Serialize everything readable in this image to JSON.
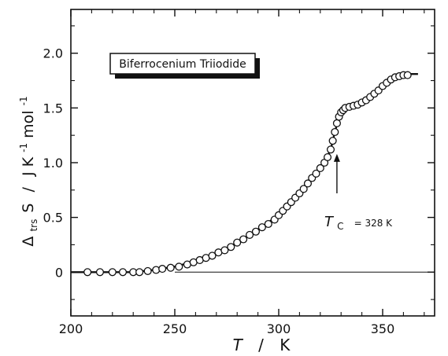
{
  "chart_data": {
    "type": "scatter",
    "title": "",
    "label_box": "Biferrocenium Triiodide",
    "xlabel": {
      "main": "T",
      "sep": "/",
      "unit": "K"
    },
    "ylabel": {
      "delta": "Δ",
      "sub": "trs",
      "sym": "S",
      "sep": "/",
      "unit_main": "J K",
      "exp1": "-1",
      "unit_mid": "mol",
      "exp2": "-1"
    },
    "xlim": [
      200,
      375
    ],
    "ylim": [
      -0.4,
      2.4
    ],
    "xticks": [
      200,
      250,
      300,
      350
    ],
    "yticks": [
      0,
      0.5,
      1.0,
      1.5,
      2.0
    ],
    "ytick_labels": [
      "0",
      "0.5",
      "1.0",
      "1.5",
      "2.0"
    ],
    "grid": false,
    "baseline_y": 0,
    "annotation": {
      "T": "T",
      "sub": "C",
      "eq": "= 328 K",
      "arrow_x": 328,
      "arrow_from_y": 0.72,
      "arrow_to_y": 1.08
    },
    "series": [
      {
        "marker": "open-circle",
        "x": [
          208,
          214,
          220,
          225,
          230,
          233,
          237,
          241,
          244,
          248,
          252,
          256,
          259,
          262,
          265,
          268,
          271,
          274,
          277,
          280,
          283,
          286,
          289,
          292,
          295,
          298,
          300,
          302,
          304,
          306,
          308,
          310,
          312,
          314,
          316,
          318,
          320,
          322,
          323.5,
          325,
          326,
          327,
          328,
          329,
          330,
          331,
          332,
          334,
          336,
          338,
          340,
          342,
          344,
          346,
          348,
          350,
          352,
          354,
          356,
          358,
          360,
          362
        ],
        "y": [
          0.0,
          0.0,
          0.0,
          0.0,
          0.0,
          0.0,
          0.01,
          0.02,
          0.03,
          0.04,
          0.05,
          0.07,
          0.09,
          0.11,
          0.13,
          0.15,
          0.18,
          0.2,
          0.23,
          0.27,
          0.3,
          0.34,
          0.37,
          0.41,
          0.44,
          0.48,
          0.52,
          0.56,
          0.6,
          0.64,
          0.68,
          0.72,
          0.76,
          0.81,
          0.86,
          0.9,
          0.95,
          1.0,
          1.05,
          1.12,
          1.2,
          1.28,
          1.36,
          1.42,
          1.46,
          1.48,
          1.5,
          1.51,
          1.52,
          1.53,
          1.55,
          1.57,
          1.6,
          1.63,
          1.66,
          1.7,
          1.73,
          1.76,
          1.78,
          1.79,
          1.8,
          1.8
        ]
      },
      {
        "marker": "line",
        "x": [
          200,
          215,
          230,
          240,
          250,
          260,
          270,
          280,
          290,
          300,
          310,
          318,
          322,
          325,
          327,
          329,
          331,
          334,
          338,
          342,
          346,
          350,
          355,
          360,
          363,
          367
        ],
        "y": [
          0.0,
          0.0,
          0.0,
          0.02,
          0.05,
          0.1,
          0.17,
          0.27,
          0.39,
          0.52,
          0.72,
          0.9,
          1.0,
          1.12,
          1.28,
          1.42,
          1.48,
          1.51,
          1.53,
          1.57,
          1.63,
          1.7,
          1.76,
          1.8,
          1.81,
          1.81
        ]
      }
    ]
  }
}
